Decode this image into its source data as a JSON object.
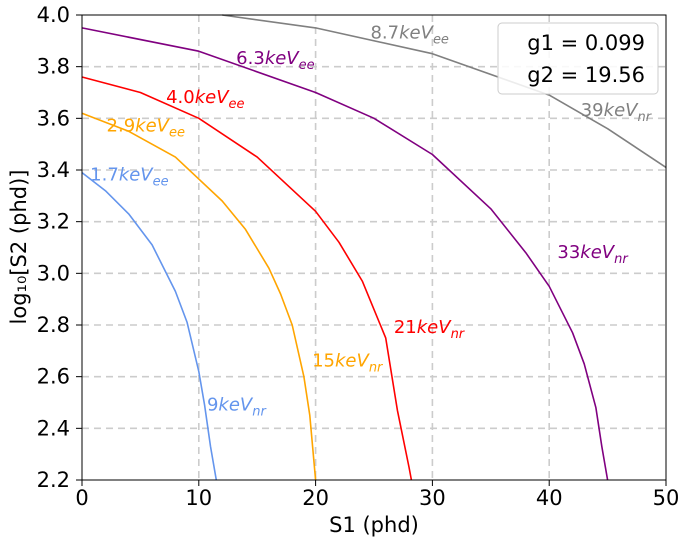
{
  "chart_data": {
    "type": "line",
    "xlabel": "S1 (phd)",
    "ylabel": "log₁₀[S2 (phd)]",
    "xlim": [
      0,
      50
    ],
    "ylim": [
      2.2,
      4.0
    ],
    "x_ticks": [
      "0",
      "10",
      "20",
      "30",
      "40",
      "50"
    ],
    "y_ticks": [
      "2.2",
      "2.4",
      "2.6",
      "2.8",
      "3.0",
      "3.2",
      "3.4",
      "3.6",
      "3.8",
      "4.0"
    ],
    "grid": true,
    "legend": {
      "placement": "top-right",
      "lines": [
        "g1 = 0.099",
        "g2 = 19.56"
      ]
    },
    "series": [
      {
        "name": "9keVnr",
        "color": "#6495ED",
        "x": [
          0,
          2,
          4,
          6,
          8,
          9,
          10,
          10.5,
          11,
          11.5
        ],
        "y": [
          3.39,
          3.32,
          3.23,
          3.11,
          2.93,
          2.81,
          2.62,
          2.49,
          2.33,
          2.2
        ]
      },
      {
        "name": "15keVnr",
        "color": "#FFA500",
        "x": [
          0,
          4,
          8,
          12,
          14,
          16,
          17,
          18,
          19,
          19.5,
          20
        ],
        "y": [
          3.62,
          3.55,
          3.45,
          3.28,
          3.17,
          3.02,
          2.92,
          2.8,
          2.6,
          2.45,
          2.2
        ]
      },
      {
        "name": "21keVnr",
        "color": "#FF0000",
        "x": [
          0,
          5,
          10,
          15,
          20,
          22,
          24,
          26,
          27,
          28,
          28.2
        ],
        "y": [
          3.76,
          3.7,
          3.6,
          3.45,
          3.24,
          3.12,
          2.97,
          2.75,
          2.47,
          2.25,
          2.2
        ]
      },
      {
        "name": "33keVnr",
        "color": "#800080",
        "x": [
          0,
          10,
          20,
          25,
          30,
          35,
          38,
          40,
          42,
          43,
          44,
          44.5,
          45
        ],
        "y": [
          3.95,
          3.86,
          3.7,
          3.6,
          3.46,
          3.25,
          3.08,
          2.95,
          2.77,
          2.65,
          2.48,
          2.33,
          2.2
        ]
      },
      {
        "name": "39keVnr",
        "color": "#808080",
        "x": [
          12,
          20,
          30,
          40,
          45,
          50
        ],
        "y": [
          4.0,
          3.95,
          3.85,
          3.69,
          3.56,
          3.41
        ]
      }
    ],
    "annotations": [
      {
        "prefix": "9",
        "unit": "keV",
        "sub": "nr",
        "color": "#6495ED",
        "x": 10.7,
        "y": 2.47
      },
      {
        "prefix": "15",
        "unit": "keV",
        "sub": "nr",
        "color": "#FFA500",
        "x": 19.7,
        "y": 2.64
      },
      {
        "prefix": "21",
        "unit": "keV",
        "sub": "nr",
        "color": "#FF0000",
        "x": 26.7,
        "y": 2.77
      },
      {
        "prefix": "33",
        "unit": "keV",
        "sub": "nr",
        "color": "#800080",
        "x": 40.7,
        "y": 3.06
      },
      {
        "prefix": "39",
        "unit": "keV",
        "sub": "nr",
        "color": "#808080",
        "x": 42.7,
        "y": 3.61
      },
      {
        "prefix": "1.7",
        "unit": "keV",
        "sub": "ee",
        "color": "#6495ED",
        "x": 0.7,
        "y": 3.36
      },
      {
        "prefix": "2.9",
        "unit": "keV",
        "sub": "ee",
        "color": "#FFA500",
        "x": 2.1,
        "y": 3.55
      },
      {
        "prefix": "4.0",
        "unit": "keV",
        "sub": "ee",
        "color": "#FF0000",
        "x": 7.2,
        "y": 3.66
      },
      {
        "prefix": "6.3",
        "unit": "keV",
        "sub": "ee",
        "color": "#800080",
        "x": 13.2,
        "y": 3.81
      },
      {
        "prefix": "8.7",
        "unit": "keV",
        "sub": "ee",
        "color": "#808080",
        "x": 24.7,
        "y": 3.91
      }
    ]
  }
}
